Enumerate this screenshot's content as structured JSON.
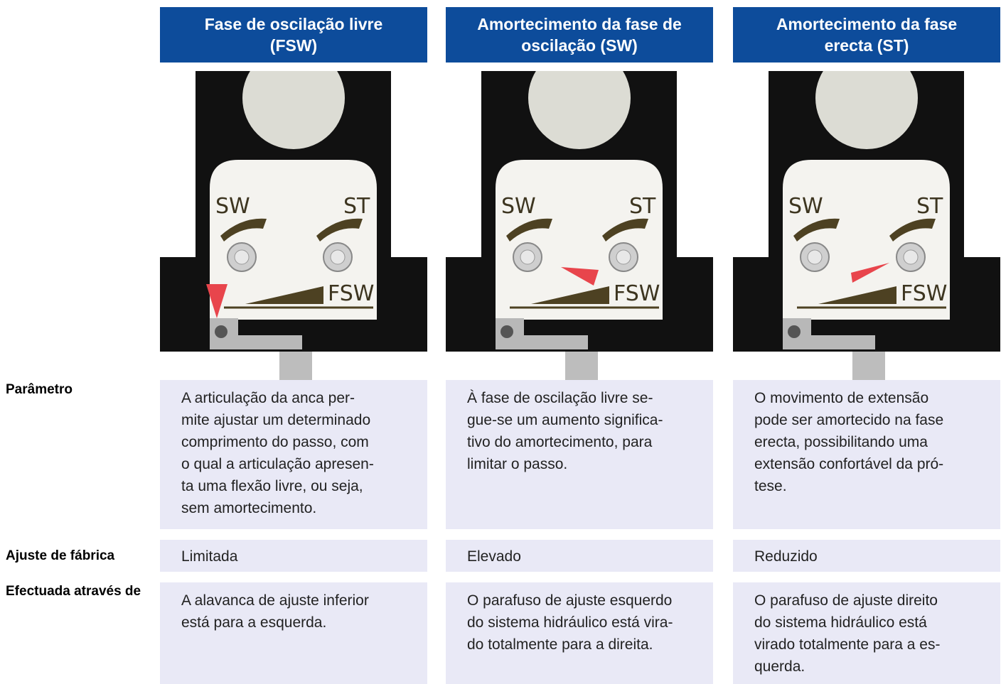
{
  "header": {
    "columns": [
      "Fase de oscilação livre (FSW)",
      "Amortecimento da fase de oscilação (SW)",
      "Amortecimento da fase erecta (ST)"
    ]
  },
  "image_labels": [
    "SW",
    "ST",
    "FSW"
  ],
  "rows": [
    {
      "label": "Parâmetro",
      "cells": [
        [
          "A articulação da anca per-",
          "mite ajustar um determinado",
          "comprimento do passo, com",
          "o qual a articulação apresen-",
          "ta uma flexão livre, ou seja,",
          "sem amortecimento."
        ],
        [
          "À fase de oscilação livre se-",
          "gue-se um aumento significa-",
          "tivo do amortecimento, para",
          "limitar o passo."
        ],
        [
          "O movimento de extensão",
          "pode ser amortecido na fase",
          "erecta, possibilitando uma",
          "extensão confortável da pró-",
          "tese."
        ]
      ]
    },
    {
      "label": "Ajuste de fábrica",
      "cells": [
        [
          "Limitada"
        ],
        [
          "Elevado"
        ],
        [
          "Reduzido"
        ]
      ]
    },
    {
      "label": "Efectuada através de",
      "cells": [
        [
          "A alavanca de ajuste inferior",
          "está para a esquerda."
        ],
        [
          "O parafuso de ajuste esquerdo",
          "do sistema hidráulico está vira-",
          "do totalmente para a direita."
        ],
        [
          "O parafuso de ajuste direito",
          "do sistema hidráulico está",
          "virado totalmente para a es-",
          "querda."
        ]
      ]
    }
  ]
}
